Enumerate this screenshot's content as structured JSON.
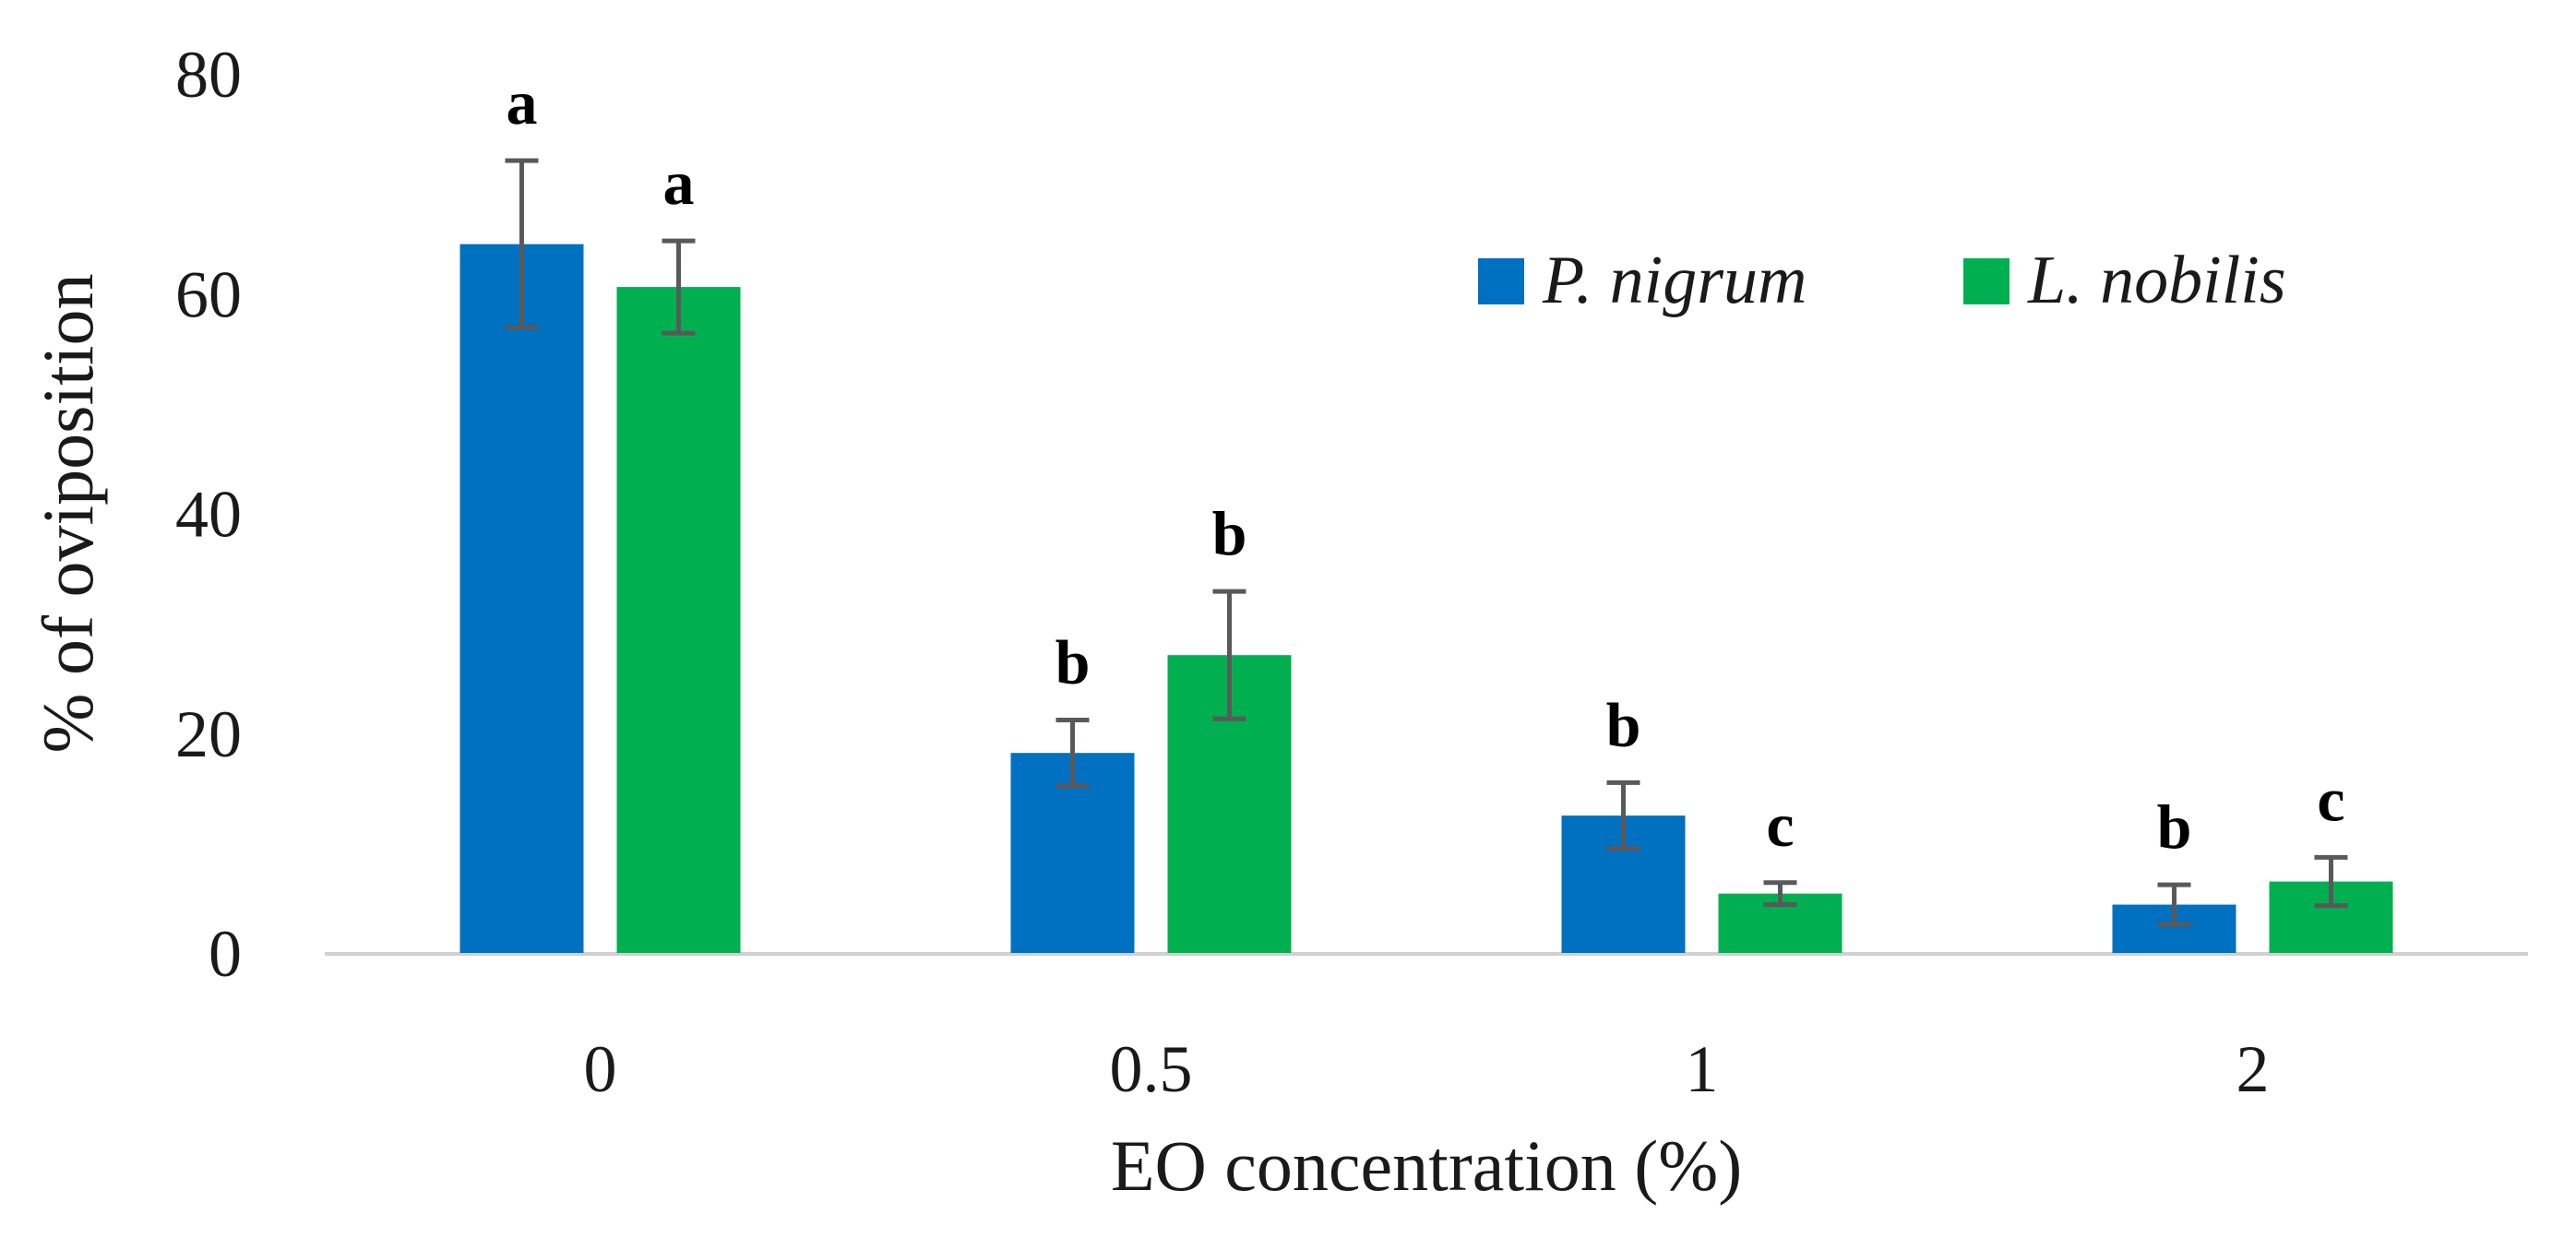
{
  "chart_data": {
    "type": "bar",
    "title": "",
    "xlabel": "EO concentration (%)",
    "ylabel": "% of oviposition",
    "ylim": [
      0,
      80
    ],
    "yticks": [
      0,
      20,
      40,
      60,
      80
    ],
    "grid": false,
    "legend_position": "top-right",
    "categories": [
      "0",
      "0.5",
      "1",
      "2"
    ],
    "series": [
      {
        "name": "P. nigrum",
        "color": "#0070C0",
        "values": [
          64.5,
          18.2,
          12.5,
          4.4
        ],
        "error": [
          7.6,
          3.0,
          3.0,
          1.8
        ],
        "letters": [
          "a",
          "b",
          "b",
          "b"
        ]
      },
      {
        "name": "L. nobilis",
        "color": "#00B050",
        "values": [
          60.6,
          27.1,
          5.4,
          6.5
        ],
        "error": [
          4.2,
          5.8,
          1.0,
          2.2
        ],
        "letters": [
          "a",
          "b",
          "c",
          "c"
        ]
      }
    ]
  }
}
